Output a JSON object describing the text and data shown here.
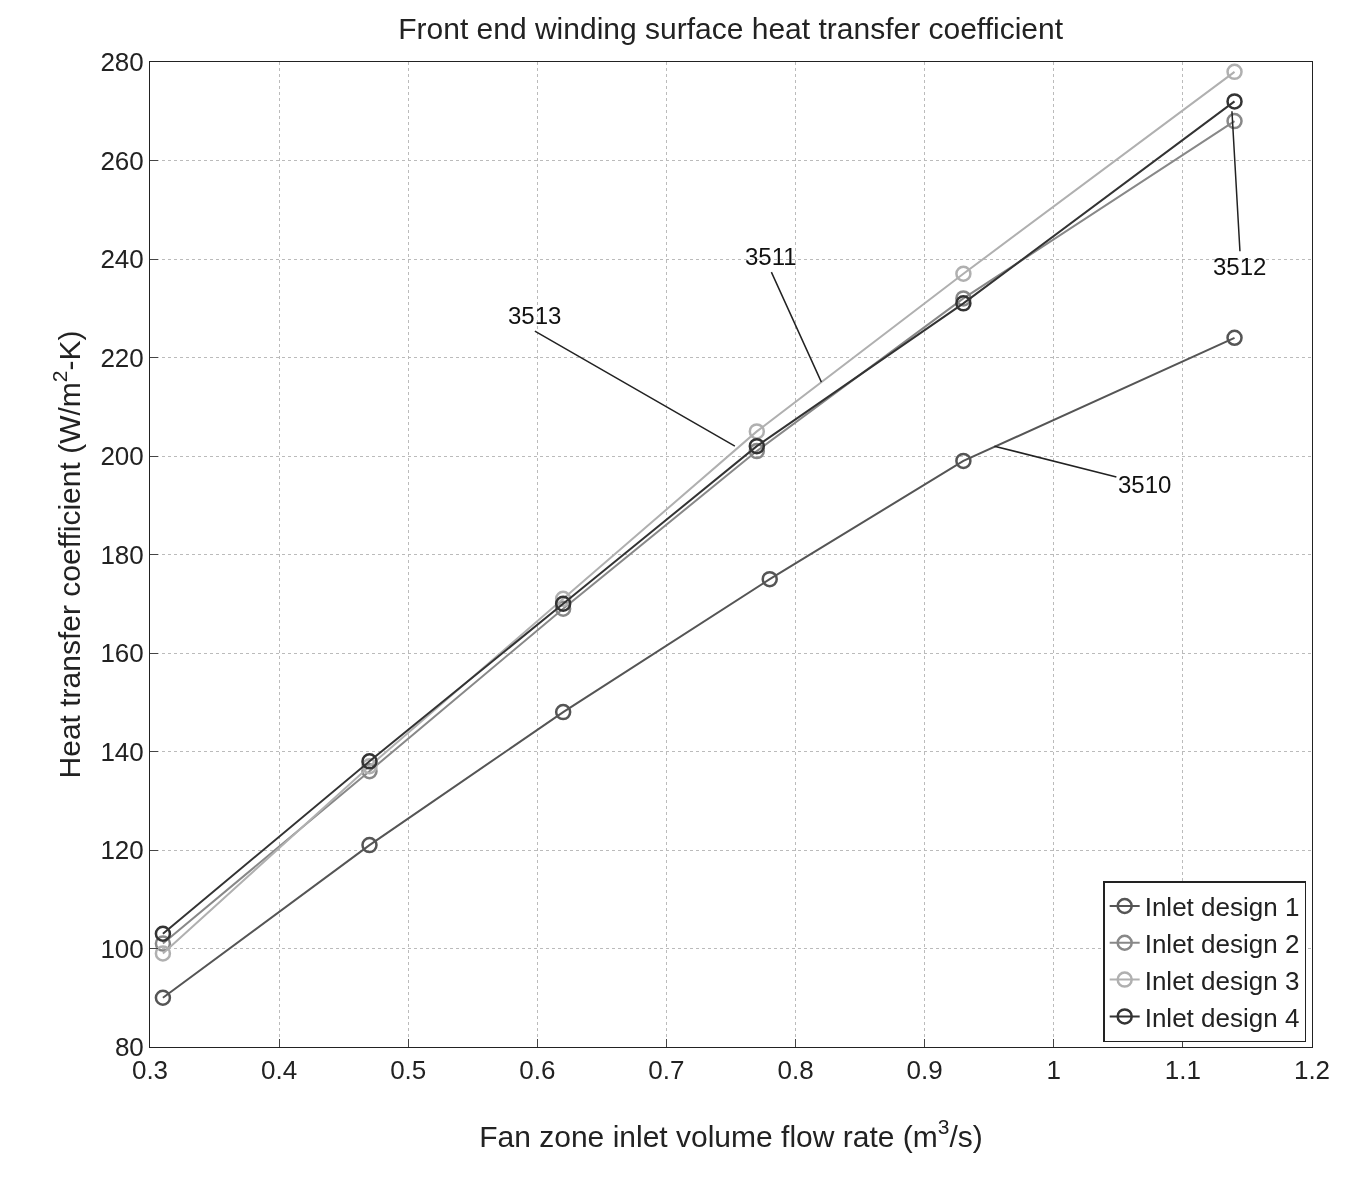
{
  "chart_data": {
    "type": "line",
    "title": "Front end winding surface heat transfer coefficient",
    "xlabel": "Fan zone inlet volume flow rate (m$^{3}$/s)",
    "ylabel": "Heat transfer coefficient (W/m$^{2}$-K)",
    "xlim": [
      0.3,
      1.2
    ],
    "xticks": [
      0.3,
      0.4,
      0.5,
      0.6,
      0.7,
      0.8,
      0.9,
      1,
      1.1,
      1.2
    ],
    "ylim": [
      80,
      280
    ],
    "yticks": [
      80,
      100,
      120,
      140,
      160,
      180,
      200,
      220,
      240,
      260,
      280
    ],
    "grid": true,
    "legend": "bottom right",
    "marker": "circle",
    "line_style": "solid",
    "series": [
      {
        "name": "Inlet design 1",
        "color": "#555555",
        "x": [
          0.31,
          0.47,
          0.62,
          0.78,
          0.93,
          1.14
        ],
        "values": [
          90,
          121,
          148,
          175,
          199,
          224
        ]
      },
      {
        "name": "Inlet design 2",
        "color": "#888888",
        "x": [
          0.31,
          0.47,
          0.62,
          0.77,
          0.93,
          1.14
        ],
        "values": [
          101,
          136,
          169,
          201,
          232,
          268
        ]
      },
      {
        "name": "Inlet design 3",
        "color": "#b0b0b0",
        "x": [
          0.31,
          0.47,
          0.62,
          0.77,
          0.93,
          1.14
        ],
        "values": [
          99,
          137,
          171,
          205,
          237,
          278
        ]
      },
      {
        "name": "Inlet design 4",
        "color": "#333333",
        "x": [
          0.31,
          0.47,
          0.62,
          0.77,
          0.93,
          1.14
        ],
        "values": [
          103,
          138,
          170,
          202,
          231,
          272
        ]
      }
    ],
    "annotations": [
      {
        "text": "3511",
        "x": 0.82,
        "y": 215
      },
      {
        "text": "3513",
        "x": 0.753,
        "y": 202
      },
      {
        "text": "3510",
        "x": 0.954,
        "y": 202
      },
      {
        "text": "3512",
        "x": 1.138,
        "y": 270
      }
    ]
  }
}
